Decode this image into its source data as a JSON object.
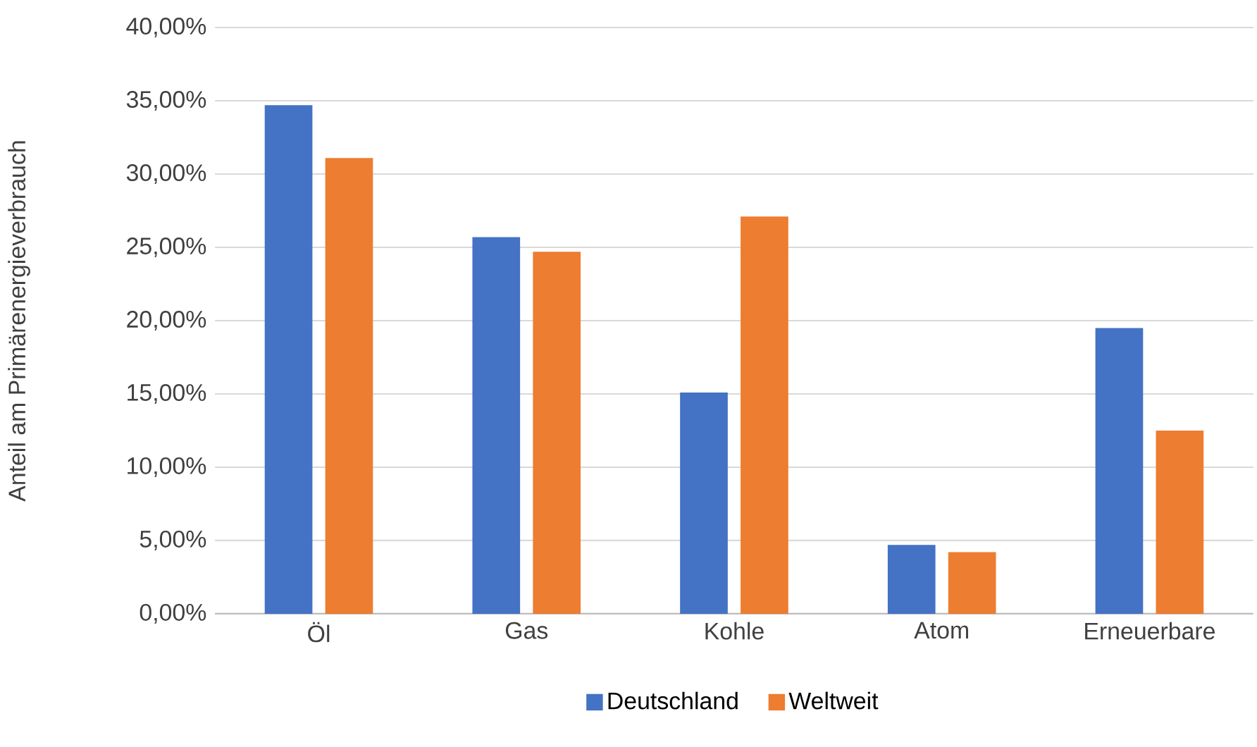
{
  "chart_data": {
    "type": "bar",
    "ylabel": "Anteil am Primärenergieverbrauch",
    "categories": [
      "Öl",
      "Gas",
      "Kohle",
      "Atom",
      "Erneuerbare"
    ],
    "series": [
      {
        "name": "Deutschland",
        "color": "#4472c4",
        "values": [
          34.7,
          25.7,
          15.1,
          4.7,
          19.5
        ]
      },
      {
        "name": "Weltweit",
        "color": "#ed7d31",
        "values": [
          31.1,
          24.7,
          27.1,
          4.2,
          12.5
        ]
      }
    ],
    "ylim": [
      0,
      40
    ],
    "yticks": [
      {
        "value": 0,
        "label": "0,00%"
      },
      {
        "value": 5,
        "label": "5,00%"
      },
      {
        "value": 10,
        "label": "10,00%"
      },
      {
        "value": 15,
        "label": "15,00%"
      },
      {
        "value": 20,
        "label": "20,00%"
      },
      {
        "value": 25,
        "label": "25,00%"
      },
      {
        "value": 30,
        "label": "30,00%"
      },
      {
        "value": 35,
        "label": "35,00%"
      },
      {
        "value": 40,
        "label": "40,00%"
      }
    ],
    "grid": "y",
    "legend": "bottom"
  }
}
